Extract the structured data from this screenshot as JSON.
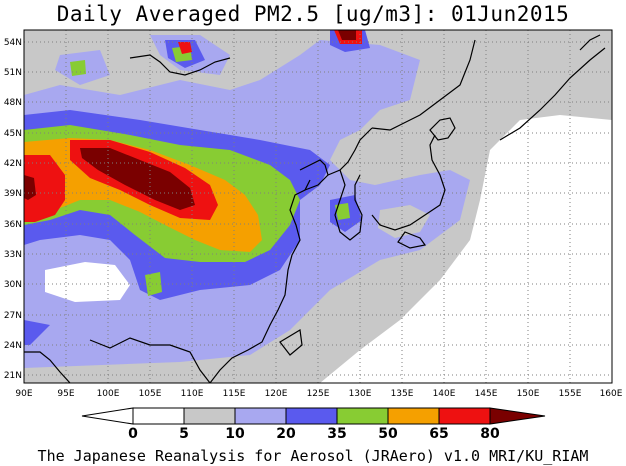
{
  "title": "Daily Averaged PM2.5 [ug/m3]: 01Jun2015",
  "footer": "The Japanese Reanalysis for Aerosol (JRAero) v1.0 MRI/KU_RIAM",
  "map": {
    "lon_range": [
      90,
      160
    ],
    "lat_range": [
      20,
      55
    ],
    "lon_labels": [
      "90E",
      "95E",
      "100E",
      "105E",
      "110E",
      "115E",
      "120E",
      "125E",
      "130E",
      "135E",
      "140E",
      "145E",
      "150E",
      "155E",
      "160E"
    ],
    "lat_labels": [
      "21N",
      "24N",
      "27N",
      "30N",
      "33N",
      "36N",
      "39N",
      "42N",
      "45N",
      "48N",
      "51N",
      "54N"
    ]
  },
  "colorbar": {
    "levels": [
      "0",
      "5",
      "10",
      "20",
      "35",
      "50",
      "65",
      "80"
    ],
    "colors": [
      "#ffffff",
      "#c8c8c8",
      "#a8a8f0",
      "#5a5aee",
      "#88cc33",
      "#f5a000",
      "#ee1111",
      "#7a0000"
    ]
  }
}
